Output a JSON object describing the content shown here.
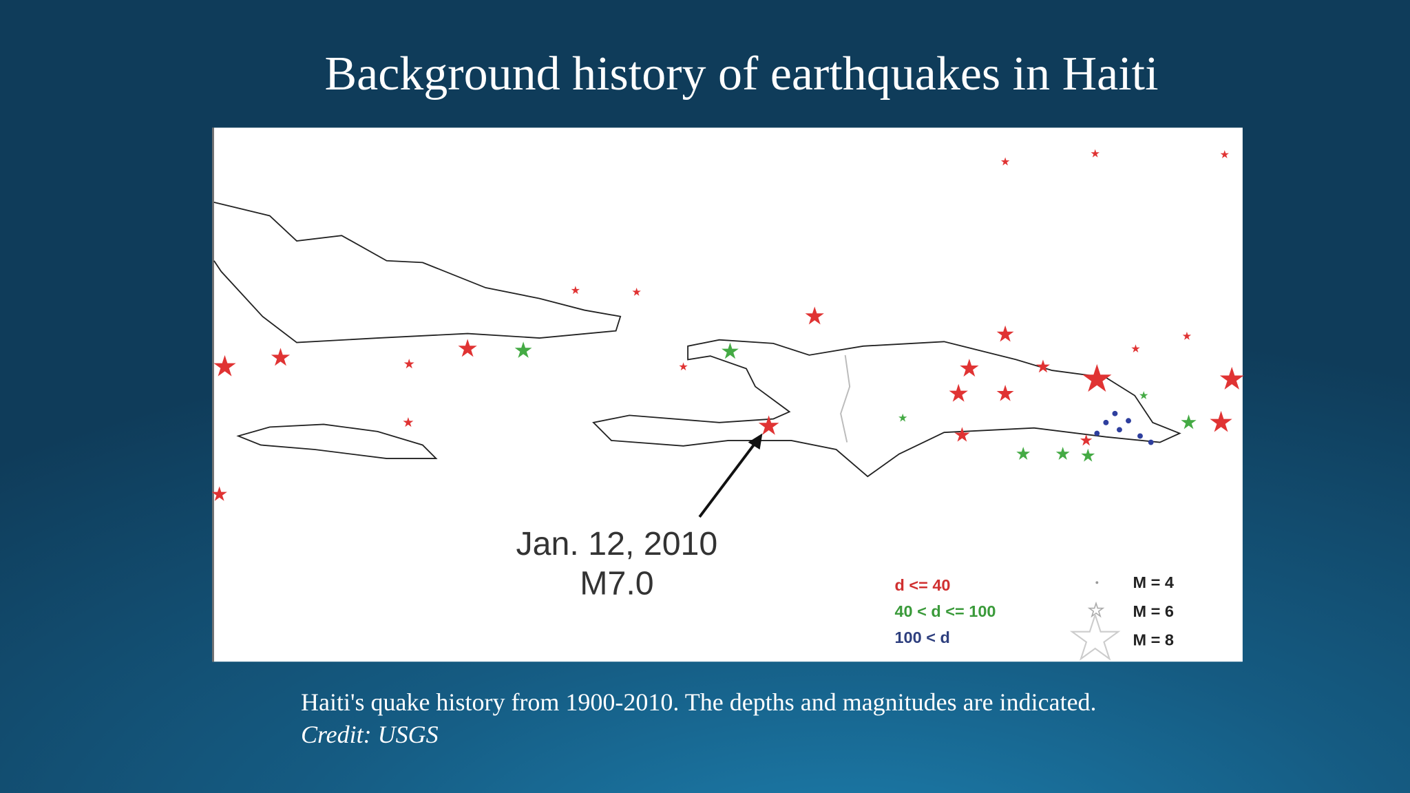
{
  "title": "Background history of earthquakes in Haiti",
  "figure": {
    "annotation": [
      "Jan. 12, 2010",
      "M7.0"
    ],
    "legend": {
      "depth": [
        "d <= 40",
        "40 < d <= 100",
        "100 < d"
      ],
      "magnitude": [
        "M = 4",
        "M = 6",
        "M = 8"
      ]
    }
  },
  "caption": {
    "text": "Haiti's quake history from 1900-2010. The depths and magnitudes are indicated.",
    "credit": "Credit: USGS"
  }
}
